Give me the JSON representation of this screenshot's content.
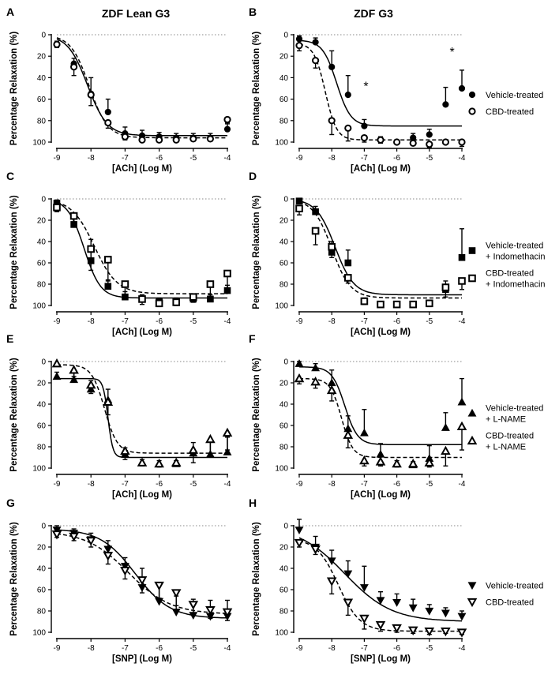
{
  "column_titles": [
    "ZDF Lean G3",
    "ZDF G3"
  ],
  "chart_data": [
    {
      "type": "scatter",
      "panel": "A",
      "column": 0,
      "row": 0,
      "xlabel": "[ACh] (Log M)",
      "ylabel": "Percentage Relaxation (%)",
      "xlim": [
        -9,
        -4
      ],
      "ylim": [
        0,
        100
      ],
      "y_reversed": true,
      "xticks": [
        -9,
        -8,
        -7,
        -6,
        -5,
        -4
      ],
      "yticks": [
        0,
        20,
        40,
        60,
        80,
        100
      ],
      "series": [
        {
          "name": "Vehicle-treated",
          "marker": "filled-circle",
          "line": "solid",
          "x": [
            -9,
            -8.5,
            -8,
            -7.5,
            -7,
            -6.5,
            -6,
            -5.5,
            -5,
            -4.5,
            -4
          ],
          "y": [
            9,
            27,
            55,
            72,
            92,
            94,
            95,
            96,
            96,
            96,
            88
          ],
          "err": [
            3,
            5,
            15,
            12,
            6,
            5,
            4,
            4,
            4,
            4,
            6
          ],
          "curve": {
            "bottom": 0,
            "top": 94,
            "logec50": -8.1,
            "hill": 1.5
          }
        },
        {
          "name": "CBD-treated",
          "marker": "open-circle",
          "line": "dashed",
          "x": [
            -9,
            -8.5,
            -8,
            -7.5,
            -7,
            -6.5,
            -6,
            -5.5,
            -5,
            -4.5,
            -4
          ],
          "y": [
            9,
            30,
            56,
            82,
            95,
            98,
            98,
            98,
            97,
            97,
            79
          ],
          "err": [
            3,
            8,
            10,
            5,
            3,
            2,
            2,
            2,
            2,
            2,
            4
          ],
          "curve": {
            "bottom": 0,
            "top": 96,
            "logec50": -8.05,
            "hill": 1.6
          }
        }
      ]
    },
    {
      "type": "scatter",
      "panel": "B",
      "column": 1,
      "row": 0,
      "xlabel": "[ACh] (Log M)",
      "ylabel": "Percentage Relaxation (%)",
      "xlim": [
        -9,
        -4
      ],
      "ylim": [
        0,
        100
      ],
      "y_reversed": true,
      "xticks": [
        -9,
        -8,
        -7,
        -6,
        -5,
        -4
      ],
      "yticks": [
        0,
        20,
        40,
        60,
        80,
        100
      ],
      "annotations": [
        {
          "text": "*",
          "x": -6.95,
          "y": 52
        },
        {
          "text": "*",
          "x": -4.3,
          "y": 20
        }
      ],
      "series": [
        {
          "name": "Vehicle-treated",
          "marker": "filled-circle",
          "line": "solid",
          "x": [
            -9,
            -8.5,
            -8,
            -7.5,
            -7,
            -6.5,
            -6,
            -5.5,
            -5,
            -4.5,
            -4
          ],
          "y": [
            4,
            7,
            30,
            56,
            85,
            98,
            100,
            96,
            93,
            65,
            50
          ],
          "err": [
            3,
            4,
            15,
            18,
            6,
            3,
            2,
            4,
            5,
            16,
            17
          ],
          "curve": {
            "bottom": 5,
            "top": 85,
            "logec50": -7.85,
            "hill": 2.0
          }
        },
        {
          "name": "CBD-treated",
          "marker": "open-circle",
          "line": "dashed",
          "x": [
            -9,
            -8.5,
            -8,
            -7.5,
            -7,
            -6.5,
            -6,
            -5.5,
            -5,
            -4.5,
            -4
          ],
          "y": [
            10,
            24,
            80,
            87,
            96,
            98,
            100,
            101,
            102,
            100,
            100
          ],
          "err": [
            5,
            7,
            13,
            12,
            4,
            3,
            2,
            2,
            3,
            2,
            4
          ],
          "curve": {
            "bottom": 8,
            "top": 98,
            "logec50": -8.2,
            "hill": 2.5
          }
        }
      ],
      "legend": [
        "Vehicle-treated",
        "CBD-treated"
      ]
    },
    {
      "type": "scatter",
      "panel": "C",
      "column": 0,
      "row": 1,
      "xlabel": "[ACh] (Log M)",
      "ylabel": "Percentage Relaxation (%)",
      "xlim": [
        -9,
        -4
      ],
      "ylim": [
        0,
        100
      ],
      "y_reversed": true,
      "xticks": [
        -9,
        -8,
        -7,
        -6,
        -5,
        -4
      ],
      "yticks": [
        0,
        20,
        40,
        60,
        80,
        100
      ],
      "series": [
        {
          "name": "Vehicle-treated + Indomethacin",
          "marker": "filled-square",
          "line": "solid",
          "x": [
            -9,
            -8.5,
            -8,
            -7.5,
            -7,
            -6.5,
            -6,
            -5.5,
            -5,
            -4.5,
            -4
          ],
          "y": [
            4,
            24,
            58,
            82,
            92,
            94,
            96,
            96,
            94,
            94,
            86
          ],
          "err": [
            3,
            8,
            20,
            6,
            5,
            4,
            3,
            3,
            4,
            4,
            5
          ],
          "curve": {
            "bottom": 0,
            "top": 93,
            "logec50": -8.2,
            "hill": 1.8
          }
        },
        {
          "name": "CBD-treated + Indomethacin",
          "marker": "open-square",
          "line": "dashed",
          "x": [
            -9,
            -8.5,
            -8,
            -7.5,
            -7,
            -6.5,
            -6,
            -5.5,
            -5,
            -4.5,
            -4
          ],
          "y": [
            8,
            16,
            47,
            57,
            80,
            94,
            98,
            97,
            92,
            80,
            70
          ],
          "err": [
            4,
            6,
            20,
            20,
            12,
            5,
            3,
            3,
            5,
            16,
            15
          ],
          "curve": {
            "bottom": 0,
            "top": 89,
            "logec50": -7.9,
            "hill": 1.3
          }
        }
      ]
    },
    {
      "type": "scatter",
      "panel": "D",
      "column": 1,
      "row": 1,
      "xlabel": "[ACh] (Log M)",
      "ylabel": "Percentage Relaxation (%)",
      "xlim": [
        -9,
        -4
      ],
      "ylim": [
        0,
        100
      ],
      "y_reversed": true,
      "xticks": [
        -9,
        -8,
        -7,
        -6,
        -5,
        -4
      ],
      "yticks": [
        0,
        20,
        40,
        60,
        80,
        100
      ],
      "series": [
        {
          "name": "Vehicle-treated + Indomethacin",
          "marker": "filled-square",
          "line": "solid",
          "x": [
            -9,
            -8.5,
            -8,
            -7.5,
            -7,
            -6.5,
            -6,
            -5.5,
            -5,
            -4.5,
            -4
          ],
          "y": [
            2,
            12,
            50,
            60,
            96,
            99,
            99,
            99,
            98,
            85,
            55
          ],
          "err": [
            2,
            5,
            10,
            12,
            3,
            2,
            2,
            2,
            3,
            8,
            27
          ],
          "curve": {
            "bottom": 0,
            "top": 90,
            "logec50": -7.9,
            "hill": 1.5
          }
        },
        {
          "name": "CBD-treated + Indomethacin",
          "marker": "open-square",
          "line": "dashed",
          "x": [
            -9,
            -8.5,
            -8,
            -7.5,
            -7,
            -6.5,
            -6,
            -5.5,
            -5,
            -4.5,
            -4
          ],
          "y": [
            9,
            30,
            45,
            74,
            96,
            99,
            99,
            99,
            98,
            83,
            77
          ],
          "err": [
            6,
            13,
            10,
            5,
            3,
            2,
            2,
            2,
            3,
            9,
            8
          ],
          "curve": {
            "bottom": 0,
            "top": 93,
            "logec50": -8.0,
            "hill": 1.5
          }
        }
      ],
      "legend": [
        "Vehicle-treated + Indomethacin",
        "CBD-treated + Indomethacin"
      ]
    },
    {
      "type": "scatter",
      "panel": "E",
      "column": 0,
      "row": 2,
      "xlabel": "[ACh] (Log M)",
      "ylabel": "Percentage Relaxation (%)",
      "xlim": [
        -9,
        -4
      ],
      "ylim": [
        0,
        100
      ],
      "y_reversed": true,
      "xticks": [
        -9,
        -8,
        -7,
        -6,
        -5,
        -4
      ],
      "yticks": [
        0,
        20,
        40,
        60,
        80,
        100
      ],
      "series": [
        {
          "name": "Vehicle-treated + L-NAME",
          "marker": "filled-triangle",
          "line": "solid",
          "x": [
            -9,
            -8.5,
            -8,
            -7.5,
            -7,
            -6.5,
            -6,
            -5.5,
            -5,
            -4.5,
            -4
          ],
          "y": [
            14,
            17,
            26,
            36,
            87,
            95,
            96,
            96,
            86,
            87,
            85
          ],
          "err": [
            4,
            8,
            8,
            10,
            6,
            3,
            3,
            3,
            10,
            14,
            14
          ],
          "curve": {
            "bottom": 16,
            "top": 90,
            "logec50": -7.5,
            "hill": 6
          }
        },
        {
          "name": "CBD-treated + L-NAME",
          "marker": "open-triangle",
          "line": "dashed",
          "x": [
            -9,
            -8.5,
            -8,
            -7.5,
            -7,
            -6.5,
            -6,
            -5.5,
            -5,
            -4.5,
            -4
          ],
          "y": [
            2,
            8,
            22,
            38,
            84,
            95,
            96,
            95,
            83,
            73,
            67
          ],
          "err": [
            2,
            6,
            8,
            12,
            8,
            3,
            3,
            3,
            12,
            15,
            16
          ],
          "curve": {
            "bottom": 3,
            "top": 86,
            "logec50": -7.6,
            "hill": 2.3
          }
        }
      ]
    },
    {
      "type": "scatter",
      "panel": "F",
      "column": 1,
      "row": 2,
      "xlabel": "[ACh] (Log M)",
      "ylabel": "Percentage Relaxation (%)",
      "xlim": [
        -9,
        -4
      ],
      "ylim": [
        0,
        100
      ],
      "y_reversed": true,
      "xticks": [
        -9,
        -8,
        -7,
        -6,
        -5,
        -4
      ],
      "yticks": [
        0,
        20,
        40,
        60,
        80,
        100
      ],
      "series": [
        {
          "name": "Vehicle-treated + L-NAME",
          "marker": "filled-triangle",
          "line": "solid",
          "x": [
            -9,
            -8.5,
            -8,
            -7.5,
            -7,
            -6.5,
            -6,
            -5.5,
            -5,
            -4.5,
            -4
          ],
          "y": [
            2,
            6,
            20,
            63,
            67,
            87,
            96,
            97,
            91,
            62,
            38
          ],
          "err": [
            2,
            4,
            12,
            12,
            22,
            10,
            3,
            3,
            12,
            14,
            22
          ],
          "curve": {
            "bottom": 5,
            "top": 78,
            "logec50": -7.6,
            "hill": 2.2
          }
        },
        {
          "name": "CBD-treated + L-NAME",
          "marker": "open-triangle",
          "line": "dashed",
          "x": [
            -9,
            -8.5,
            -8,
            -7.5,
            -7,
            -6.5,
            -6,
            -5.5,
            -5,
            -4.5,
            -4
          ],
          "y": [
            16,
            19,
            27,
            69,
            93,
            94,
            96,
            96,
            95,
            84,
            61
          ],
          "err": [
            5,
            6,
            10,
            12,
            5,
            4,
            3,
            3,
            4,
            14,
            22
          ],
          "curve": {
            "bottom": 16,
            "top": 90,
            "logec50": -7.7,
            "hill": 2.5
          }
        }
      ],
      "legend": [
        "Vehicle-treated + L-NAME",
        "CBD-treated + L-NAME"
      ]
    },
    {
      "type": "scatter",
      "panel": "G",
      "column": 0,
      "row": 3,
      "xlabel": "[SNP] (Log M)",
      "ylabel": "Percentage Relaxation (%)",
      "xlim": [
        -9,
        -4
      ],
      "ylim": [
        0,
        100
      ],
      "y_reversed": true,
      "xticks": [
        -9,
        -8,
        -7,
        -6,
        -5,
        -4
      ],
      "yticks": [
        0,
        20,
        40,
        60,
        80,
        100
      ],
      "series": [
        {
          "name": "Vehicle-treated",
          "marker": "filled-down-triangle",
          "line": "solid",
          "x": [
            -9,
            -8.5,
            -8,
            -7.5,
            -7,
            -6.5,
            -6,
            -5.5,
            -5,
            -4.5,
            -4
          ],
          "y": [
            4,
            7,
            13,
            22,
            38,
            58,
            71,
            81,
            84,
            85,
            85
          ],
          "err": [
            4,
            4,
            6,
            8,
            8,
            18,
            15,
            15,
            15,
            15,
            15
          ],
          "curve": {
            "bottom": 3,
            "top": 87,
            "logec50": -6.7,
            "hill": 0.85
          }
        },
        {
          "name": "CBD-treated",
          "marker": "open-down-triangle",
          "line": "dashed",
          "x": [
            -9,
            -8.5,
            -8,
            -7.5,
            -7,
            -6.5,
            -6,
            -5.5,
            -5,
            -4.5,
            -4
          ],
          "y": [
            8,
            10,
            14,
            28,
            42,
            51,
            56,
            63,
            74,
            79,
            81
          ],
          "err": [
            3,
            4,
            6,
            8,
            8,
            12,
            12,
            12,
            10,
            8,
            8
          ],
          "curve": {
            "bottom": 5,
            "top": 83,
            "logec50": -6.9,
            "hill": 0.7
          }
        }
      ]
    },
    {
      "type": "scatter",
      "panel": "H",
      "column": 1,
      "row": 3,
      "xlabel": "[SNP] (Log M)",
      "ylabel": "Percentage Relaxation (%)",
      "xlim": [
        -9,
        -4
      ],
      "ylim": [
        0,
        100
      ],
      "y_reversed": true,
      "xticks": [
        -9,
        -8,
        -7,
        -6,
        -5,
        -4
      ],
      "yticks": [
        0,
        20,
        40,
        60,
        80,
        100
      ],
      "series": [
        {
          "name": "Vehicle-treated",
          "marker": "filled-down-triangle",
          "line": "solid",
          "x": [
            -9,
            -8.5,
            -8,
            -7.5,
            -7,
            -6.5,
            -6,
            -5.5,
            -5,
            -4.5,
            -4
          ],
          "y": [
            4,
            20,
            33,
            45,
            58,
            70,
            72,
            77,
            80,
            82,
            85
          ],
          "err": [
            10,
            10,
            10,
            12,
            20,
            8,
            8,
            8,
            6,
            5,
            5
          ],
          "curve": {
            "bottom": 0,
            "top": 90,
            "logec50": -7.6,
            "hill": 0.6
          }
        },
        {
          "name": "CBD-treated",
          "marker": "open-down-triangle",
          "line": "dashed",
          "x": [
            -9,
            -8.5,
            -8,
            -7.5,
            -7,
            -6.5,
            -6,
            -5.5,
            -5,
            -4.5,
            -4
          ],
          "y": [
            16,
            22,
            52,
            72,
            87,
            93,
            96,
            98,
            99,
            99,
            100
          ],
          "err": [
            4,
            5,
            12,
            12,
            10,
            6,
            4,
            3,
            3,
            2,
            2
          ],
          "curve": {
            "bottom": 12,
            "top": 99,
            "logec50": -7.8,
            "hill": 1.3
          }
        }
      ],
      "legend": [
        "Vehicle-treated",
        "CBD-treated"
      ]
    }
  ]
}
